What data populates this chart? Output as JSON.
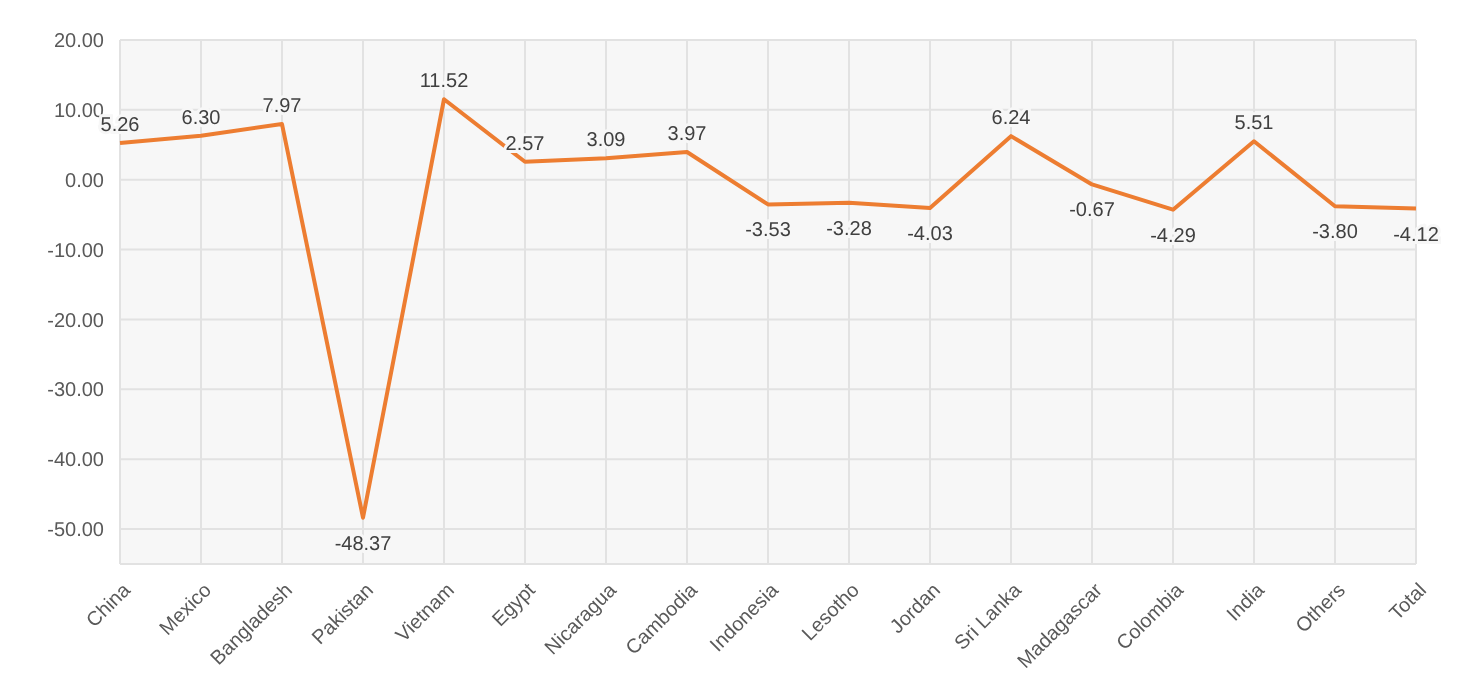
{
  "chart_data": {
    "type": "line",
    "categories": [
      "China",
      "Mexico",
      "Bangladesh",
      "Pakistan",
      "Vietnam",
      "Egypt",
      "Nicaragua",
      "Cambodia",
      "Indonesia",
      "Lesotho",
      "Jordan",
      "Sri Lanka",
      "Madagascar",
      "Colombia",
      "India",
      "Others",
      "Total"
    ],
    "series": [
      {
        "color": "#ed7d31",
        "values": [
          5.26,
          6.3,
          7.97,
          -48.37,
          11.52,
          2.57,
          3.09,
          3.97,
          -3.53,
          -3.28,
          -4.03,
          6.24,
          -0.67,
          -4.29,
          5.51,
          -3.8,
          -4.12
        ],
        "value_labels": [
          "5.26",
          "6.30",
          "7.97",
          "-48.37",
          "11.52",
          "2.57",
          "3.09",
          "3.97",
          "-3.53",
          "-3.28",
          "-4.03",
          "6.24",
          "-0.67",
          "-4.29",
          "5.51",
          "-3.80",
          "-4.12"
        ]
      }
    ],
    "ylim": [
      -55,
      20
    ],
    "yticks": [
      {
        "value": 20,
        "label": "20.00"
      },
      {
        "value": 10,
        "label": "10.00"
      },
      {
        "value": 0,
        "label": "0.00"
      },
      {
        "value": -10,
        "label": "-10.00"
      },
      {
        "value": -20,
        "label": "-20.00"
      },
      {
        "value": -30,
        "label": "-30.00"
      },
      {
        "value": -40,
        "label": "-40.00"
      },
      {
        "value": -50,
        "label": "-50.00"
      }
    ],
    "grid": true,
    "marker": "none",
    "line_style": "solid"
  }
}
